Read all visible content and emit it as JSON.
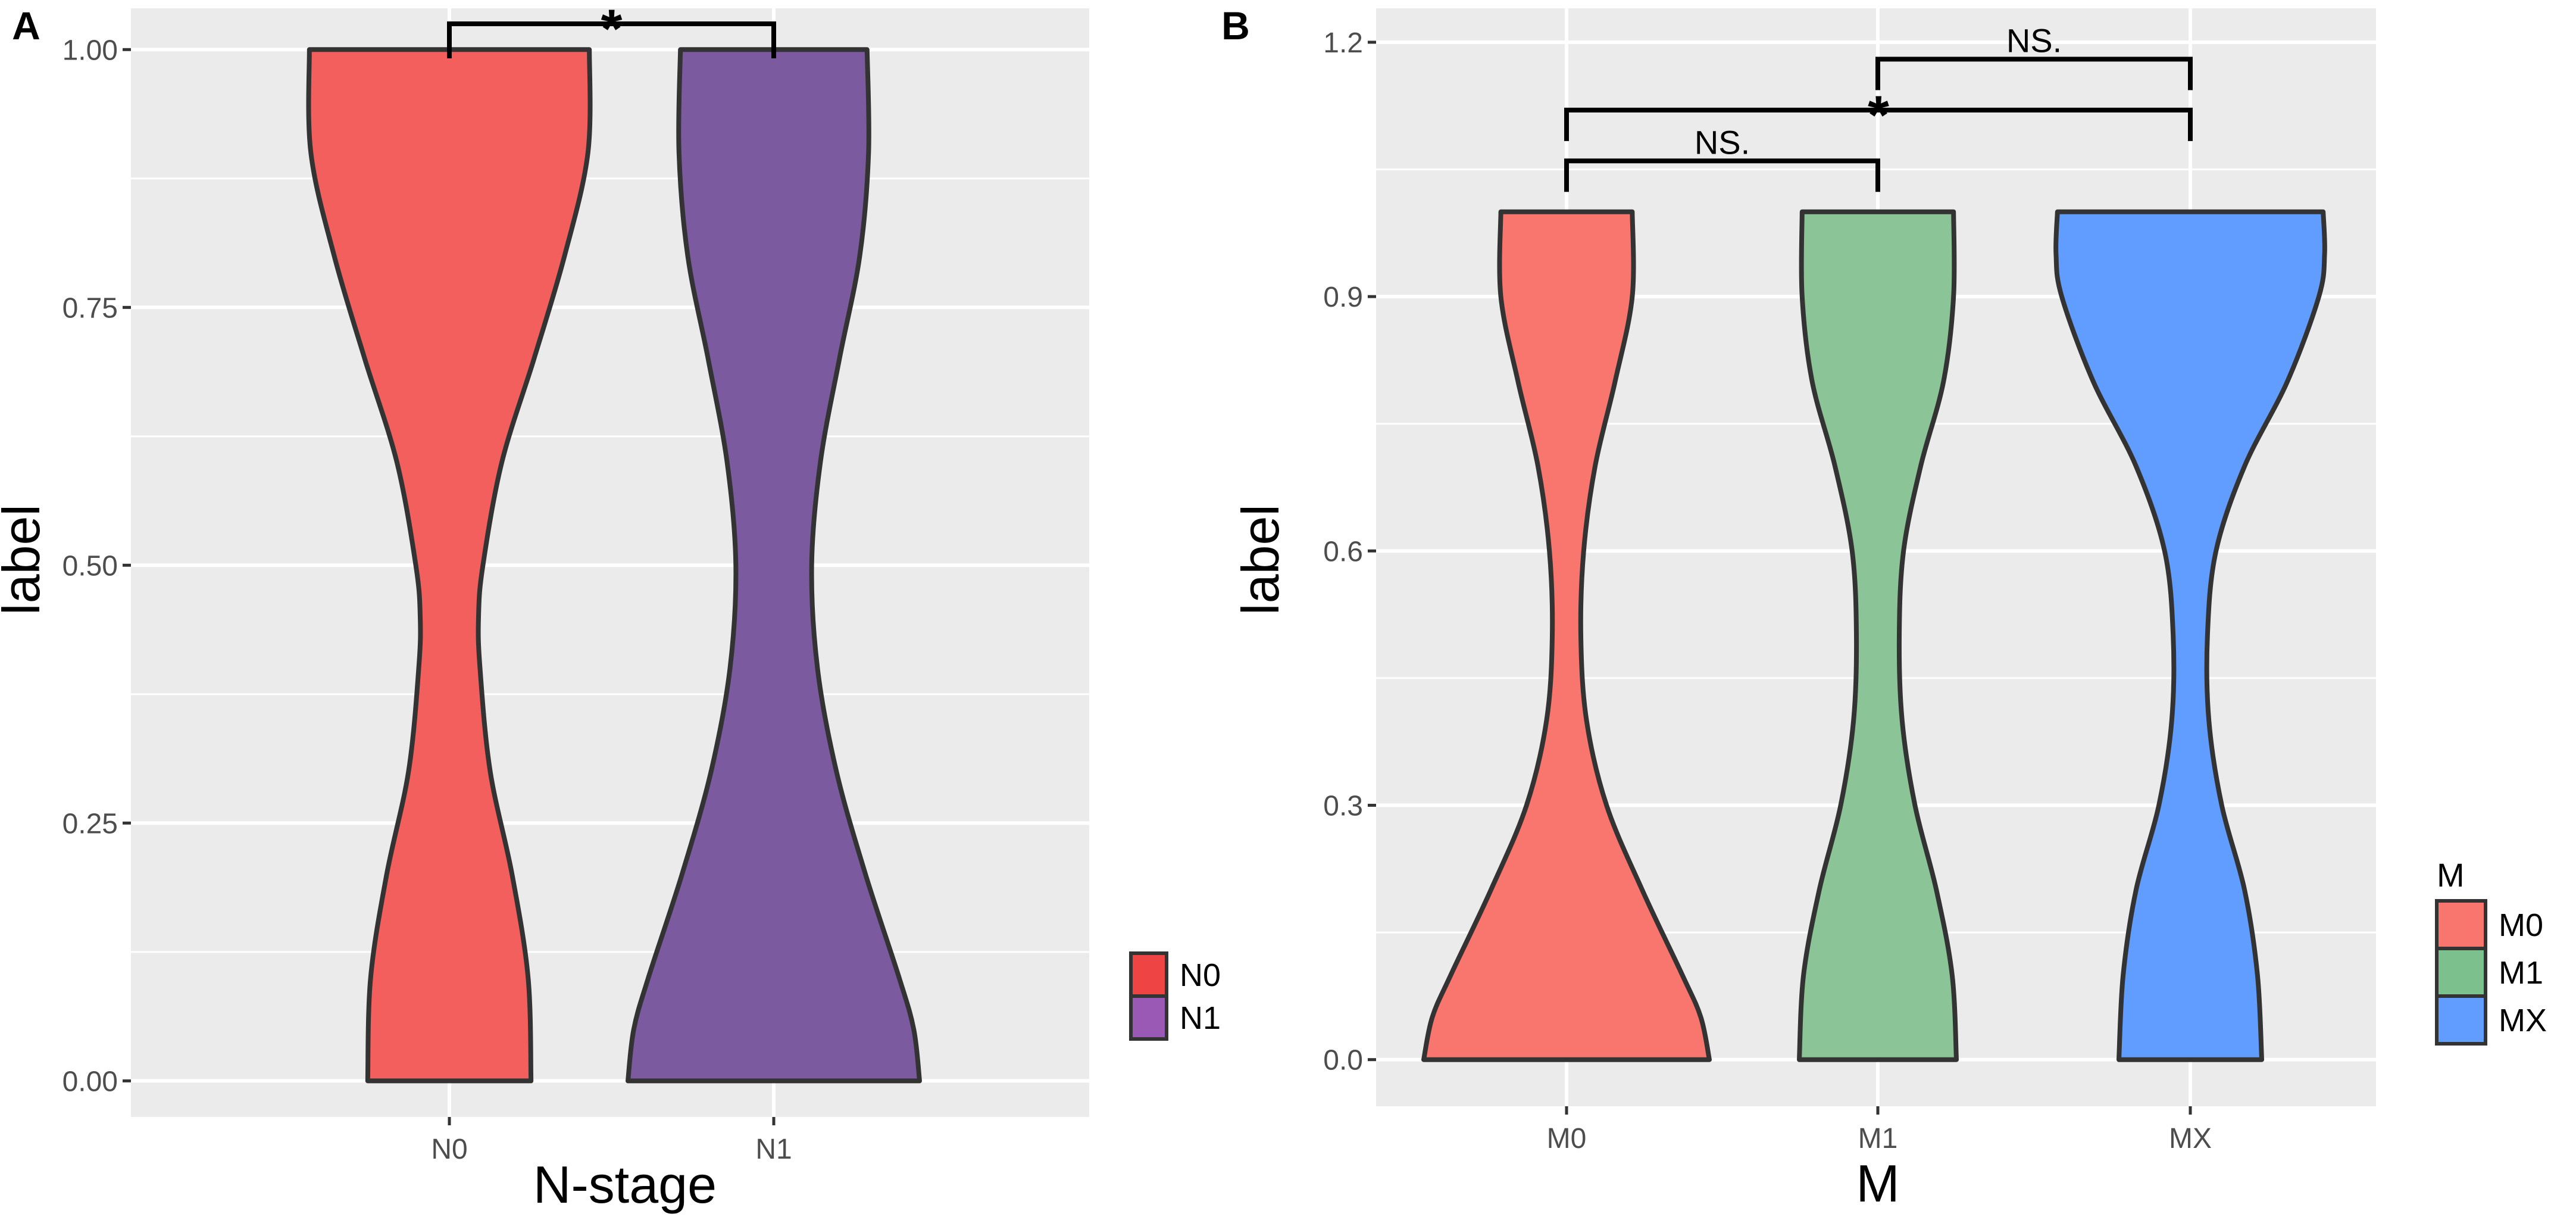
{
  "chart_data": [
    {
      "panel_label": "A",
      "type": "violin",
      "xlabel": "N-stage",
      "ylabel": "label",
      "categories": [
        "N0",
        "N1"
      ],
      "ylim": [
        -0.035,
        1.04
      ],
      "yticks": [
        0.0,
        0.25,
        0.5,
        0.75,
        1.0
      ],
      "ytick_labels": [
        "0.00",
        "0.25",
        "0.50",
        "0.75",
        "1.00"
      ],
      "series": [
        {
          "name": "N0",
          "color": "#F25F5C",
          "density": [
            [
              0.0,
              0.56
            ],
            [
              0.1,
              0.54
            ],
            [
              0.2,
              0.43
            ],
            [
              0.3,
              0.28
            ],
            [
              0.4,
              0.21
            ],
            [
              0.45,
              0.2
            ],
            [
              0.5,
              0.23
            ],
            [
              0.6,
              0.36
            ],
            [
              0.7,
              0.58
            ],
            [
              0.8,
              0.79
            ],
            [
              0.9,
              0.95
            ],
            [
              1.0,
              0.96
            ]
          ]
        },
        {
          "name": "N1",
          "color": "#7B5AA0",
          "density": [
            [
              0.0,
              1.0
            ],
            [
              0.05,
              0.96
            ],
            [
              0.1,
              0.86
            ],
            [
              0.2,
              0.63
            ],
            [
              0.3,
              0.43
            ],
            [
              0.4,
              0.3
            ],
            [
              0.5,
              0.26
            ],
            [
              0.6,
              0.32
            ],
            [
              0.7,
              0.45
            ],
            [
              0.8,
              0.59
            ],
            [
              0.9,
              0.65
            ],
            [
              1.0,
              0.64
            ]
          ]
        }
      ],
      "legend": {
        "title": "",
        "entries": [
          {
            "label": "N0",
            "color": "#EF4444"
          },
          {
            "label": "N1",
            "color": "#9B59B6"
          }
        ]
      },
      "comparisons": [
        {
          "groups": [
            "N0",
            "N1"
          ],
          "label": "*",
          "y": 1.025
        }
      ]
    },
    {
      "panel_label": "B",
      "type": "violin",
      "xlabel": "M",
      "ylabel": "label",
      "categories": [
        "M0",
        "M1",
        "MX"
      ],
      "ylim": [
        -0.055,
        1.24
      ],
      "yticks": [
        0.0,
        0.3,
        0.6,
        0.9,
        1.2
      ],
      "ytick_labels": [
        "0.0",
        "0.3",
        "0.6",
        "0.9",
        "1.2"
      ],
      "series": [
        {
          "name": "M0",
          "color": "#F8766D",
          "density": [
            [
              0.0,
              1.0
            ],
            [
              0.05,
              0.94
            ],
            [
              0.1,
              0.81
            ],
            [
              0.2,
              0.53
            ],
            [
              0.3,
              0.28
            ],
            [
              0.4,
              0.14
            ],
            [
              0.5,
              0.1
            ],
            [
              0.6,
              0.12
            ],
            [
              0.7,
              0.2
            ],
            [
              0.8,
              0.34
            ],
            [
              0.9,
              0.46
            ],
            [
              1.0,
              0.46
            ]
          ]
        },
        {
          "name": "M1",
          "color": "#8BC497",
          "density": [
            [
              0.0,
              0.55
            ],
            [
              0.1,
              0.52
            ],
            [
              0.2,
              0.41
            ],
            [
              0.3,
              0.26
            ],
            [
              0.4,
              0.17
            ],
            [
              0.5,
              0.15
            ],
            [
              0.6,
              0.18
            ],
            [
              0.7,
              0.3
            ],
            [
              0.8,
              0.46
            ],
            [
              0.9,
              0.53
            ],
            [
              1.0,
              0.53
            ]
          ]
        },
        {
          "name": "MX",
          "color": "#619CFF",
          "density": [
            [
              0.0,
              0.5
            ],
            [
              0.1,
              0.47
            ],
            [
              0.2,
              0.38
            ],
            [
              0.3,
              0.22
            ],
            [
              0.4,
              0.13
            ],
            [
              0.5,
              0.12
            ],
            [
              0.6,
              0.18
            ],
            [
              0.7,
              0.38
            ],
            [
              0.8,
              0.68
            ],
            [
              0.9,
              0.9
            ],
            [
              0.95,
              0.94
            ],
            [
              1.0,
              0.93
            ]
          ]
        }
      ],
      "legend": {
        "title": "M",
        "entries": [
          {
            "label": "M0",
            "color": "#F8766D"
          },
          {
            "label": "M1",
            "color": "#7CC08E"
          },
          {
            "label": "MX",
            "color": "#619CFF"
          }
        ]
      },
      "comparisons": [
        {
          "groups": [
            "M0",
            "M1"
          ],
          "label": "NS.",
          "y": 1.06
        },
        {
          "groups": [
            "M0",
            "MX"
          ],
          "label": "*",
          "y": 1.12
        },
        {
          "groups": [
            "M1",
            "MX"
          ],
          "label": "NS.",
          "y": 1.18
        }
      ]
    }
  ]
}
